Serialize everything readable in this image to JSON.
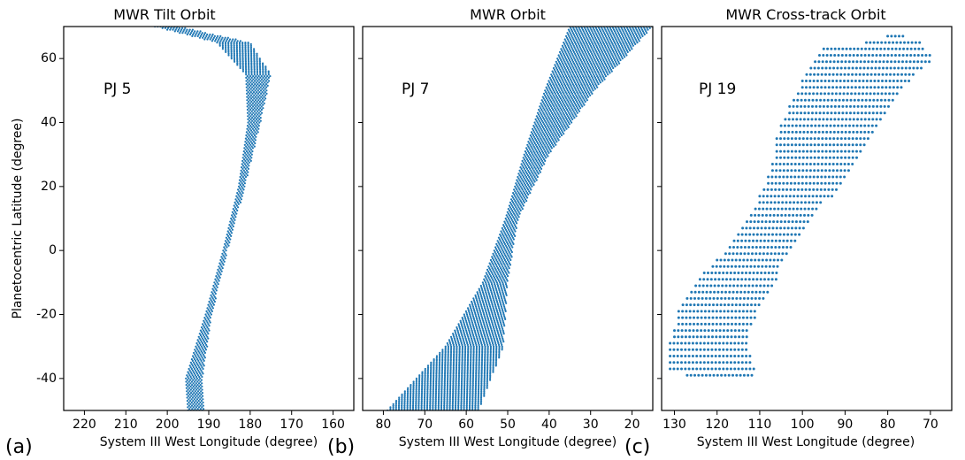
{
  "y_axis": {
    "label": "Planetocentric Latitude (degree)",
    "ylim": [
      -50,
      70
    ],
    "ticks": [
      60,
      40,
      20,
      0,
      -20,
      -40
    ]
  },
  "point_color": "#1f77b4",
  "chart_data": [
    {
      "type": "scatter",
      "panel_label": "(a)",
      "title": "MWR Tilt Orbit",
      "annotation": "PJ 5",
      "xlabel": "System III West Longitude (degree)",
      "xlim": [
        225,
        155
      ],
      "xticks": [
        220,
        210,
        200,
        190,
        180,
        170,
        160
      ],
      "series": [
        {
          "track": [
            [
              193,
              -50
            ],
            [
              193.5,
              -40
            ],
            [
              190,
              -20
            ],
            [
              186,
              0
            ],
            [
              182,
              20
            ],
            [
              179,
              40
            ],
            [
              178,
              55
            ],
            [
              184,
              65
            ],
            [
              200,
              70
            ]
          ],
          "track_width_deg": [
            4,
            4,
            1.5,
            1,
            1.5,
            3,
            6,
            8,
            6
          ]
        }
      ]
    },
    {
      "type": "scatter",
      "panel_label": "(b)",
      "title": "MWR Orbit",
      "annotation": "PJ 7",
      "xlabel": "System III West Longitude (degree)",
      "xlim": [
        85,
        15
      ],
      "xticks": [
        80,
        70,
        60,
        50,
        40,
        30,
        20
      ],
      "series": [
        {
          "track": [
            [
              68,
              -50
            ],
            [
              58,
              -30
            ],
            [
              53,
              -10
            ],
            [
              49,
              10
            ],
            [
              43,
              30
            ],
            [
              35,
              50
            ],
            [
              25,
              70
            ]
          ],
          "track_width_deg": [
            22,
            14,
            6,
            3,
            6,
            12,
            20
          ]
        }
      ]
    },
    {
      "type": "scatter",
      "panel_label": "(c)",
      "title": "MWR Cross-track Orbit",
      "annotation": "PJ 19",
      "xlabel": "System III West Longitude (degree)",
      "xlim": [
        133,
        65
      ],
      "xticks": [
        130,
        120,
        110,
        100,
        90,
        80,
        70
      ],
      "series": [
        {
          "rows": [
            [
              -39,
              127,
              111
            ],
            [
              -37,
              131,
              111
            ],
            [
              -35,
              131,
              112
            ],
            [
              -33,
              131,
              112
            ],
            [
              -31,
              131,
              113
            ],
            [
              -29,
              131,
              113
            ],
            [
              -27,
              130,
              113
            ],
            [
              -25,
              130,
              113
            ],
            [
              -23,
              129,
              112
            ],
            [
              -21,
              129,
              111
            ],
            [
              -19,
              129,
              111
            ],
            [
              -17,
              128,
              110
            ],
            [
              -15,
              127,
              109
            ],
            [
              -13,
              126,
              108
            ],
            [
              -11,
              125,
              107
            ],
            [
              -9,
              124,
              106
            ],
            [
              -7,
              123,
              106
            ],
            [
              -5,
              121,
              105
            ],
            [
              -3,
              120,
              104
            ],
            [
              -1,
              118,
              103
            ],
            [
              1,
              117,
              102
            ],
            [
              3,
              116,
              101
            ],
            [
              5,
              115,
              100
            ],
            [
              7,
              114,
              99
            ],
            [
              9,
              113,
              98
            ],
            [
              11,
              112,
              97
            ],
            [
              13,
              111,
              96
            ],
            [
              15,
              110,
              95
            ],
            [
              17,
              110,
              93
            ],
            [
              19,
              109,
              92
            ],
            [
              21,
              108,
              91
            ],
            [
              23,
              108,
              90
            ],
            [
              25,
              107,
              89
            ],
            [
              27,
              107,
              88
            ],
            [
              29,
              106,
              87
            ],
            [
              31,
              106,
              86
            ],
            [
              33,
              106,
              85
            ],
            [
              35,
              106,
              84
            ],
            [
              37,
              105,
              83
            ],
            [
              39,
              105,
              82
            ],
            [
              41,
              104,
              81
            ],
            [
              43,
              103,
              80
            ],
            [
              45,
              103,
              79
            ],
            [
              47,
              102,
              78
            ],
            [
              49,
              101,
              77
            ],
            [
              51,
              100,
              76
            ],
            [
              53,
              100,
              75
            ],
            [
              55,
              99,
              74
            ],
            [
              57,
              98,
              72
            ],
            [
              59,
              97,
              70
            ],
            [
              61,
              96,
              70
            ],
            [
              63,
              95,
              71
            ],
            [
              65,
              85,
              72
            ],
            [
              67,
              80,
              76
            ]
          ]
        }
      ]
    }
  ]
}
